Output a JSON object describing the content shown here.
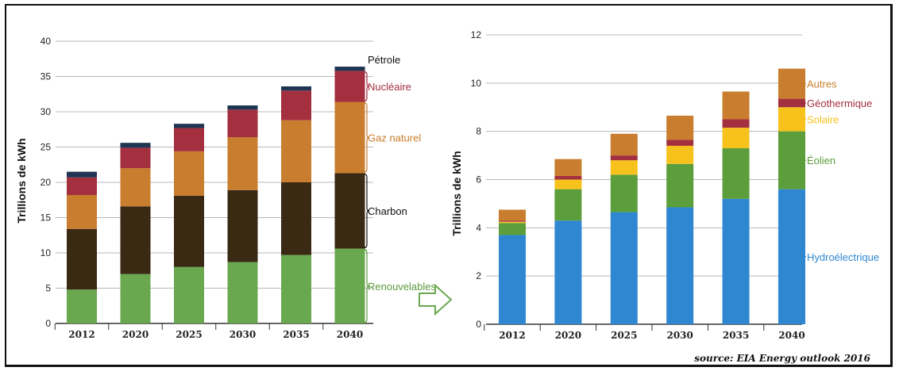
{
  "chart_data": [
    {
      "type": "bar",
      "stacked": true,
      "categories": [
        "2012",
        "2020",
        "2025",
        "2030",
        "2035",
        "2040"
      ],
      "ylabel": "Trillions de kWh",
      "ylim": [
        0,
        40
      ],
      "yticks": [
        0,
        5,
        10,
        15,
        20,
        25,
        30,
        35,
        40
      ],
      "grid": true,
      "series": [
        {
          "name": "Renouvelables",
          "color": "#6aa84f",
          "values": [
            4.8,
            7.0,
            8.0,
            8.7,
            9.7,
            10.6
          ]
        },
        {
          "name": "Charbon",
          "color": "#3a2a14",
          "values": [
            8.6,
            9.6,
            10.1,
            10.2,
            10.3,
            10.7
          ]
        },
        {
          "name": "Gaz naturel",
          "color": "#c97d2e",
          "values": [
            4.8,
            5.4,
            6.3,
            7.5,
            8.8,
            10.1
          ]
        },
        {
          "name": "Nucléaire",
          "color": "#a32f3f",
          "values": [
            2.5,
            2.9,
            3.3,
            3.9,
            4.2,
            4.4
          ]
        },
        {
          "name": "Pétrole",
          "color": "#1f3553",
          "values": [
            0.8,
            0.7,
            0.6,
            0.6,
            0.6,
            0.6
          ]
        }
      ],
      "annotations": [
        {
          "text": "Pétrole",
          "color": "#111111"
        },
        {
          "text": "Nucléaire",
          "color": "#a32f3f"
        },
        {
          "text": "Gaz naturel",
          "color": "#c97d2e"
        },
        {
          "text": "Charbon",
          "color": "#111111"
        },
        {
          "text": "Renouvelables",
          "color": "#5a9a3c"
        }
      ]
    },
    {
      "type": "bar",
      "stacked": true,
      "categories": [
        "2012",
        "2020",
        "2025",
        "2030",
        "2035",
        "2040"
      ],
      "ylabel": "Trillions de kWh",
      "ylim": [
        0,
        12
      ],
      "yticks": [
        0,
        2,
        4,
        6,
        8,
        10,
        12
      ],
      "grid": true,
      "series": [
        {
          "name": "Hydroélectrique",
          "color": "#2f86d1",
          "values": [
            3.7,
            4.3,
            4.65,
            4.85,
            5.2,
            5.6
          ]
        },
        {
          "name": "Éolien",
          "color": "#5c9e3c",
          "values": [
            0.5,
            1.3,
            1.55,
            1.8,
            2.1,
            2.4
          ]
        },
        {
          "name": "Solaire",
          "color": "#f7c21c",
          "values": [
            0.05,
            0.4,
            0.6,
            0.75,
            0.85,
            1.0
          ]
        },
        {
          "name": "Géothermique",
          "color": "#a32f3f",
          "values": [
            0.05,
            0.15,
            0.2,
            0.25,
            0.35,
            0.35
          ]
        },
        {
          "name": "Autres",
          "color": "#c97d2e",
          "values": [
            0.45,
            0.7,
            0.9,
            1.0,
            1.15,
            1.25
          ]
        }
      ],
      "annotations": [
        {
          "text": "Autres",
          "color": "#c97d2e"
        },
        {
          "text": "Géothermique",
          "color": "#a32f3f"
        },
        {
          "text": "Solaire",
          "color": "#f7c21c"
        },
        {
          "text": "Éolien",
          "color": "#5c9e3c"
        },
        {
          "text": "Hydroélectrique",
          "color": "#2f86d1"
        }
      ]
    }
  ],
  "source": "source: EIA Energy outlook 2016"
}
